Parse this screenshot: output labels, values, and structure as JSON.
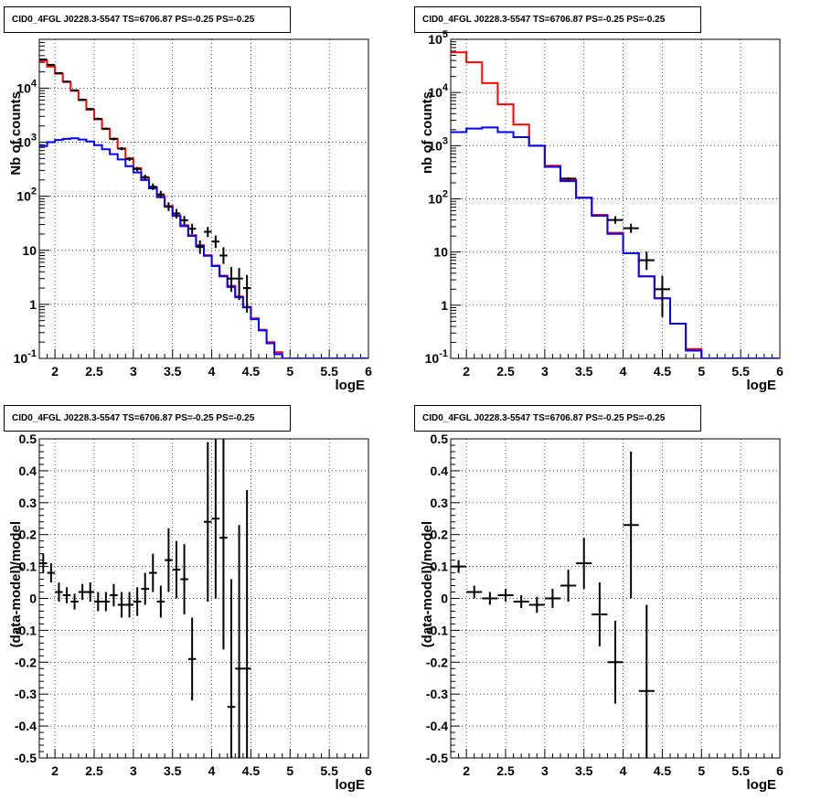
{
  "chart_data": [
    {
      "id": "counts_fine",
      "type": "step-histogram",
      "title": "CID0_4FGL J0228.3-5547 TS=6706.87 PS=-0.25 PS=-0.25",
      "xlabel": "logE",
      "ylabel": "Nb of counts",
      "xlim": [
        1.8,
        6
      ],
      "ylim": [
        0.1,
        80000
      ],
      "yscale": "log",
      "grid": true,
      "xticks": [
        "2",
        "2.5",
        "3",
        "3.5",
        "4",
        "4.5",
        "5",
        "5.5",
        "6"
      ],
      "yticks": [
        "10^-1",
        "1",
        "10",
        "10^2",
        "10^3",
        "10^4"
      ],
      "bin_edges": [
        1.8,
        1.9,
        2.0,
        2.1,
        2.2,
        2.3,
        2.4,
        2.5,
        2.6,
        2.7,
        2.8,
        2.9,
        3.0,
        3.1,
        3.2,
        3.3,
        3.4,
        3.5,
        3.6,
        3.7,
        3.8,
        3.9,
        4.0,
        4.1,
        4.2,
        4.3,
        4.4,
        4.5,
        4.6,
        4.7,
        4.8,
        4.9,
        5.0,
        5.1,
        5.2,
        5.3,
        5.4,
        5.5,
        5.6,
        5.7,
        5.8,
        5.9,
        6.0
      ],
      "series": [
        {
          "color": "#ff0000",
          "values": [
            32000,
            25000,
            18500,
            13000,
            8900,
            6000,
            4000,
            2650,
            1750,
            1150,
            760,
            500,
            330,
            220,
            146,
            100,
            66,
            44,
            29,
            19,
            12.4,
            8.1,
            5.2,
            3.4,
            2.2,
            1.4,
            0.9,
            0.55,
            0.34,
            0.2,
            0.13,
            0.1,
            0.1,
            0.1,
            0.1,
            0.1,
            0.1,
            0.1,
            0.1,
            0.1,
            0.1,
            0.1
          ]
        },
        {
          "color": "#0000ff",
          "values": [
            850,
            1000,
            1100,
            1150,
            1180,
            1120,
            1030,
            880,
            740,
            600,
            480,
            360,
            275,
            200,
            140,
            96,
            64,
            43,
            28,
            18.5,
            12,
            7.9,
            5.1,
            3.3,
            2.1,
            1.35,
            0.88,
            0.53,
            0.33,
            0.19,
            0.12,
            0.1,
            0.1,
            0.1,
            0.1,
            0.1,
            0.1,
            0.1,
            0.1,
            0.1,
            0.1,
            0.1
          ]
        }
      ],
      "data_points": [
        {
          "x": 1.85,
          "y": 34000,
          "ylo": 33000,
          "yhi": 35000
        },
        {
          "x": 1.95,
          "y": 27000,
          "ylo": 26200,
          "yhi": 27800
        },
        {
          "x": 2.05,
          "y": 19000,
          "ylo": 18300,
          "yhi": 19700
        },
        {
          "x": 2.15,
          "y": 13200,
          "ylo": 12700,
          "yhi": 13700
        },
        {
          "x": 2.25,
          "y": 9100,
          "ylo": 8700,
          "yhi": 9500
        },
        {
          "x": 2.35,
          "y": 6100,
          "ylo": 5800,
          "yhi": 6400
        },
        {
          "x": 2.45,
          "y": 4100,
          "ylo": 3900,
          "yhi": 4300
        },
        {
          "x": 2.55,
          "y": 2700,
          "ylo": 2550,
          "yhi": 2850
        },
        {
          "x": 2.65,
          "y": 1780,
          "ylo": 1690,
          "yhi": 1870
        },
        {
          "x": 2.75,
          "y": 1150,
          "ylo": 1080,
          "yhi": 1220
        },
        {
          "x": 2.85,
          "y": 760,
          "ylo": 710,
          "yhi": 810
        },
        {
          "x": 2.95,
          "y": 490,
          "ylo": 450,
          "yhi": 530
        },
        {
          "x": 3.05,
          "y": 320,
          "ylo": 290,
          "yhi": 350
        },
        {
          "x": 3.15,
          "y": 225,
          "ylo": 200,
          "yhi": 250
        },
        {
          "x": 3.25,
          "y": 150,
          "ylo": 130,
          "yhi": 172
        },
        {
          "x": 3.35,
          "y": 108,
          "ylo": 92,
          "yhi": 126
        },
        {
          "x": 3.45,
          "y": 64,
          "ylo": 53,
          "yhi": 77
        },
        {
          "x": 3.55,
          "y": 48,
          "ylo": 39,
          "yhi": 58
        },
        {
          "x": 3.65,
          "y": 36,
          "ylo": 30,
          "yhi": 43
        },
        {
          "x": 3.75,
          "y": 25,
          "ylo": 20,
          "yhi": 31
        },
        {
          "x": 3.85,
          "y": 11.5,
          "ylo": 8.6,
          "yhi": 15.2
        },
        {
          "x": 3.95,
          "y": 22,
          "ylo": 17.5,
          "yhi": 27
        },
        {
          "x": 4.05,
          "y": 14.5,
          "ylo": 11,
          "yhi": 18.8
        },
        {
          "x": 4.15,
          "y": 8,
          "ylo": 5.6,
          "yhi": 11.4
        },
        {
          "x": 4.25,
          "y": 3,
          "ylo": 1.7,
          "yhi": 4.9
        },
        {
          "x": 4.35,
          "y": 3,
          "ylo": 1.2,
          "yhi": 4.7
        },
        {
          "x": 4.45,
          "y": 2,
          "ylo": 0.7,
          "yhi": 3.5
        }
      ]
    },
    {
      "id": "counts_coarse",
      "type": "step-histogram",
      "title": "CID0_4FGL J0228.3-5547 TS=6706.87 PS=-0.25 PS=-0.25",
      "xlabel": "logE",
      "ylabel": "nb of counts",
      "xlim": [
        1.8,
        6
      ],
      "ylim": [
        0.1,
        100000
      ],
      "yscale": "log",
      "grid": true,
      "xticks": [
        "2",
        "2.5",
        "3",
        "3.5",
        "4",
        "4.5",
        "5",
        "5.5",
        "6"
      ],
      "yticks": [
        "10^-1",
        "1",
        "10",
        "10^2",
        "10^3",
        "10^4",
        "10^5"
      ],
      "bin_edges": [
        1.8,
        2.0,
        2.2,
        2.4,
        2.6,
        2.8,
        3.0,
        3.2,
        3.4,
        3.6,
        3.8,
        4.0,
        4.2,
        4.4,
        4.6,
        4.8,
        5.0,
        5.2,
        5.4,
        5.6,
        5.8,
        6.0
      ],
      "series": [
        {
          "color": "#ff0000",
          "values": [
            57000,
            37000,
            15000,
            6000,
            2500,
            1000,
            420,
            230,
            105,
            50,
            23,
            9.5,
            3.5,
            1.35,
            0.45,
            0.15,
            0.1,
            0.1,
            0.1,
            0.1,
            0.1
          ]
        },
        {
          "color": "#0000ff",
          "values": [
            1800,
            2100,
            2200,
            1800,
            1450,
            1000,
            400,
            215,
            105,
            48,
            22,
            9.5,
            3.5,
            1.35,
            0.45,
            0.14,
            0.1,
            0.1,
            0.1,
            0.1,
            0.1
          ]
        }
      ],
      "data_points": [
        {
          "x": 3.3,
          "y": 240,
          "ylo": 225,
          "yhi": 255
        },
        {
          "x": 3.9,
          "y": 40,
          "ylo": 34,
          "yhi": 47
        },
        {
          "x": 4.1,
          "y": 28,
          "ylo": 23,
          "yhi": 34
        },
        {
          "x": 4.3,
          "y": 7,
          "ylo": 4.6,
          "yhi": 10.2
        },
        {
          "x": 4.5,
          "y": 2,
          "ylo": 0.6,
          "yhi": 3.6
        }
      ]
    },
    {
      "id": "residuals_fine",
      "type": "errorbar",
      "title": "CID0_4FGL J0228.3-5547 TS=6706.87 PS=-0.25 PS=-0.25",
      "xlabel": "logE",
      "ylabel": "(data-model)/model",
      "xlim": [
        1.8,
        6
      ],
      "ylim": [
        -0.5,
        0.5
      ],
      "grid": true,
      "xticks": [
        "2",
        "2.5",
        "3",
        "3.5",
        "4",
        "4.5",
        "5",
        "5.5",
        "6"
      ],
      "yticks": [
        "-0.5",
        "-0.4",
        "-0.3",
        "-0.2",
        "-0.1",
        "0",
        "0.1",
        "0.2",
        "0.3",
        "0.4",
        "0.5"
      ],
      "xerr": 0.05,
      "points": [
        {
          "x": 1.85,
          "y": 0.11,
          "err": 0.03
        },
        {
          "x": 1.95,
          "y": 0.08,
          "err": 0.03
        },
        {
          "x": 2.05,
          "y": 0.02,
          "err": 0.03
        },
        {
          "x": 2.15,
          "y": 0.01,
          "err": 0.025
        },
        {
          "x": 2.25,
          "y": -0.01,
          "err": 0.025
        },
        {
          "x": 2.35,
          "y": 0.02,
          "err": 0.025
        },
        {
          "x": 2.45,
          "y": 0.02,
          "err": 0.03
        },
        {
          "x": 2.55,
          "y": -0.01,
          "err": 0.03
        },
        {
          "x": 2.65,
          "y": -0.01,
          "err": 0.03
        },
        {
          "x": 2.75,
          "y": 0.01,
          "err": 0.035
        },
        {
          "x": 2.85,
          "y": -0.02,
          "err": 0.04
        },
        {
          "x": 2.95,
          "y": -0.02,
          "err": 0.04
        },
        {
          "x": 3.05,
          "y": -0.01,
          "err": 0.045
        },
        {
          "x": 3.15,
          "y": 0.03,
          "err": 0.05
        },
        {
          "x": 3.25,
          "y": 0.08,
          "err": 0.06
        },
        {
          "x": 3.35,
          "y": -0.01,
          "err": 0.05
        },
        {
          "x": 3.45,
          "y": 0.12,
          "err": 0.1
        },
        {
          "x": 3.55,
          "y": 0.09,
          "err": 0.09
        },
        {
          "x": 3.65,
          "y": 0.06,
          "err": 0.11
        },
        {
          "x": 3.75,
          "y": -0.19,
          "err": 0.13
        },
        {
          "x": 3.95,
          "y": 0.24,
          "err": 0.25
        },
        {
          "x": 4.05,
          "y": 0.25,
          "err": 0.25
        },
        {
          "x": 4.15,
          "y": 0.19,
          "err": 0.35
        },
        {
          "x": 4.25,
          "y": -0.34,
          "err": 0.4
        },
        {
          "x": 4.35,
          "y": -0.22,
          "err": 0.45
        },
        {
          "x": 4.45,
          "y": -0.22,
          "err": 0.56
        }
      ]
    },
    {
      "id": "residuals_coarse",
      "type": "errorbar",
      "title": "CID0_4FGL J0228.3-5547 TS=6706.87 PS=-0.25 PS=-0.25",
      "xlabel": "logE",
      "ylabel": "(data-model)/model",
      "xlim": [
        1.8,
        6
      ],
      "ylim": [
        -0.5,
        0.5
      ],
      "grid": true,
      "xticks": [
        "2",
        "2.5",
        "3",
        "3.5",
        "4",
        "4.5",
        "5",
        "5.5",
        "6"
      ],
      "yticks": [
        "-0.5",
        "-0.4",
        "-0.3",
        "-0.2",
        "-0.1",
        "0",
        "0.1",
        "0.2",
        "0.3",
        "0.4",
        "0.5"
      ],
      "xerr": 0.1,
      "points": [
        {
          "x": 1.9,
          "y": 0.1,
          "err": 0.02
        },
        {
          "x": 2.1,
          "y": 0.02,
          "err": 0.02
        },
        {
          "x": 2.3,
          "y": 0.0,
          "err": 0.02
        },
        {
          "x": 2.5,
          "y": 0.01,
          "err": 0.02
        },
        {
          "x": 2.7,
          "y": -0.01,
          "err": 0.02
        },
        {
          "x": 2.9,
          "y": -0.02,
          "err": 0.025
        },
        {
          "x": 3.1,
          "y": 0.0,
          "err": 0.03
        },
        {
          "x": 3.3,
          "y": 0.04,
          "err": 0.05
        },
        {
          "x": 3.5,
          "y": 0.11,
          "err": 0.08
        },
        {
          "x": 3.7,
          "y": -0.05,
          "err": 0.1
        },
        {
          "x": 3.9,
          "y": -0.2,
          "err": 0.13
        },
        {
          "x": 4.1,
          "y": 0.23,
          "err": 0.23
        },
        {
          "x": 4.3,
          "y": -0.29,
          "err": 0.27
        }
      ]
    }
  ]
}
